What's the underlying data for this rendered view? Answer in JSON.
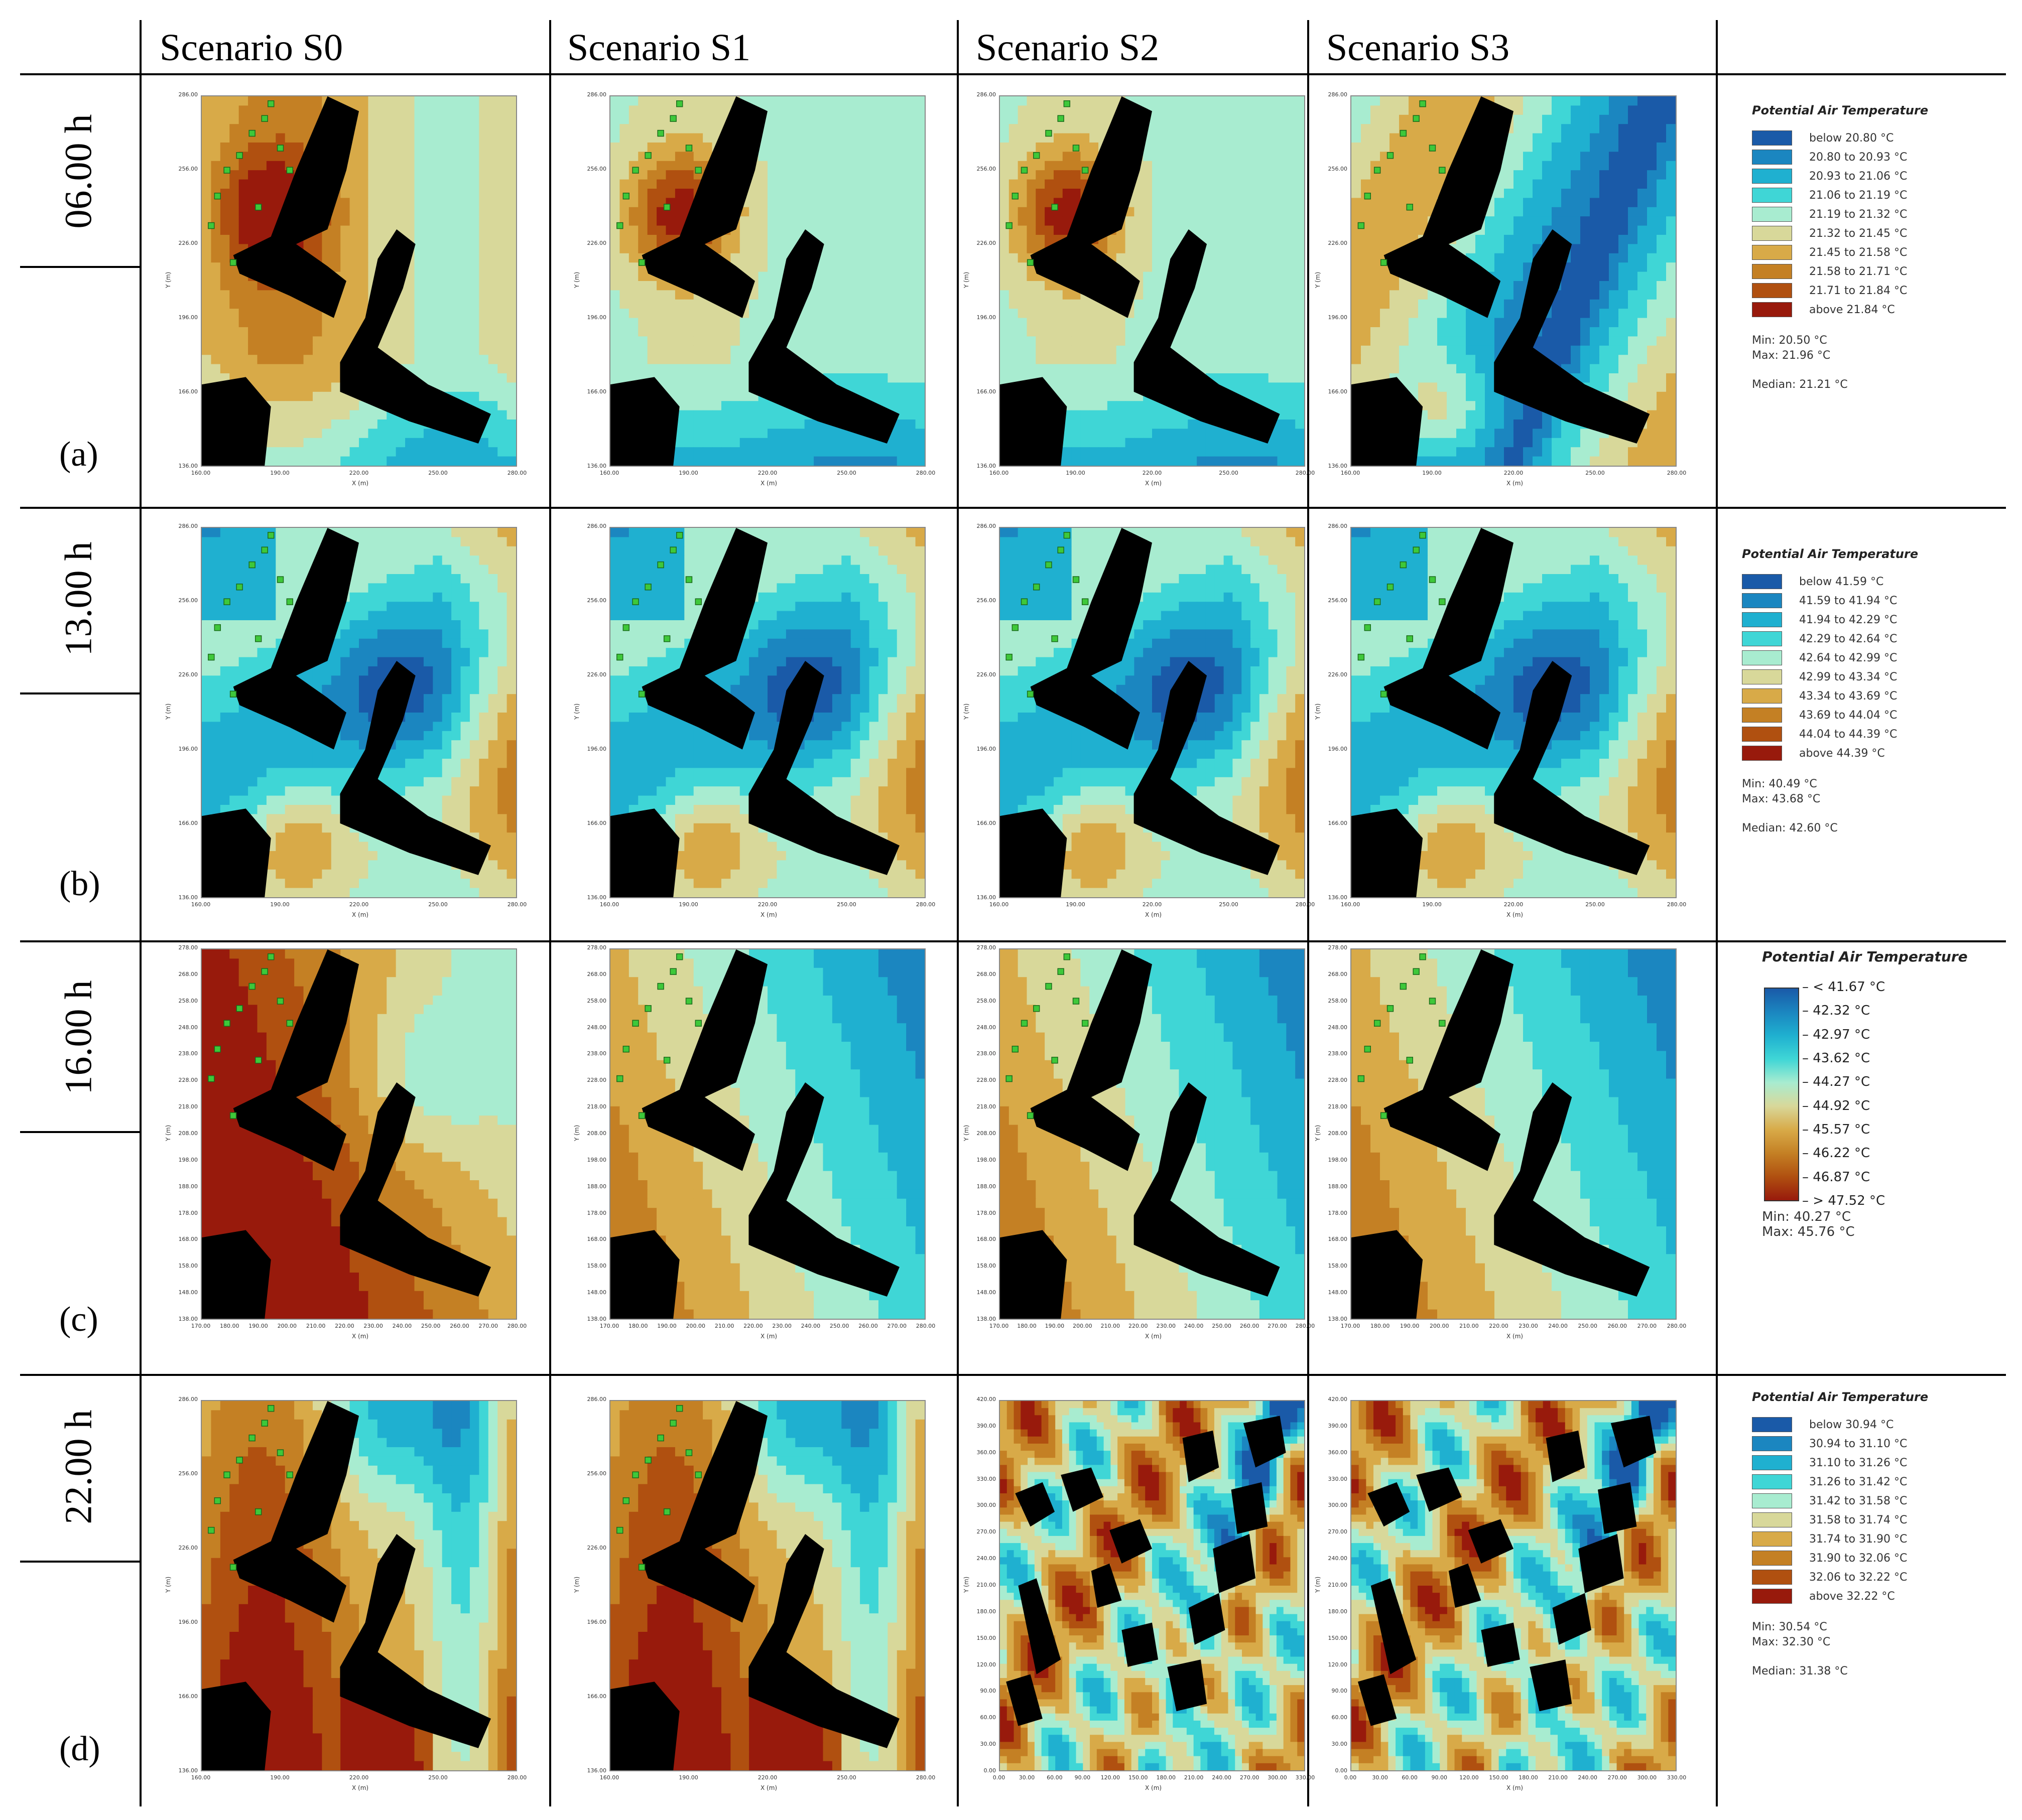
{
  "headers": [
    "Scenario S0",
    "Scenario S1",
    "Scenario S2",
    "Scenario S3"
  ],
  "rows": [
    {
      "time": "06.00 h",
      "letter": "(a)"
    },
    {
      "time": "13.00 h",
      "letter": "(b)"
    },
    {
      "time": "16.00 h",
      "letter": "(c)"
    },
    {
      "time": "22.00 h",
      "letter": "(d)"
    }
  ],
  "axis": {
    "x_label": "X (m)",
    "y_label": "Y (m)",
    "rows_abd": {
      "x_ticks": [
        "160.00",
        "190.00",
        "220.00",
        "250.00",
        "280.00"
      ],
      "y_ticks": [
        "286.00",
        "256.00",
        "226.00",
        "196.00",
        "166.00",
        "136.00"
      ]
    },
    "row_c": {
      "x_ticks": [
        "170.00",
        "180.00",
        "190.00",
        "200.00",
        "210.00",
        "220.00",
        "230.00",
        "240.00",
        "250.00",
        "260.00",
        "270.00",
        "280.00"
      ],
      "y_ticks": [
        "278.00",
        "268.00",
        "258.00",
        "248.00",
        "238.00",
        "228.00",
        "218.00",
        "208.00",
        "198.00",
        "188.00",
        "178.00",
        "168.00",
        "158.00",
        "148.00",
        "138.00"
      ]
    },
    "row_d_wide": {
      "x_ticks": [
        "0.00",
        "30.00",
        "60.00",
        "90.00",
        "120.00",
        "150.00",
        "180.00",
        "210.00",
        "240.00",
        "270.00",
        "300.00",
        "330.00"
      ],
      "y_ticks": [
        "420.00",
        "390.00",
        "360.00",
        "330.00",
        "300.00",
        "270.00",
        "240.00",
        "210.00",
        "180.00",
        "150.00",
        "120.00",
        "90.00",
        "60.00",
        "30.00",
        "0.00"
      ]
    }
  },
  "legends": [
    {
      "title": "Potential Air Temperature",
      "entries": [
        "below 20.80 °C",
        "20.80 to 20.93 °C",
        "20.93 to 21.06 °C",
        "21.06 to 21.19 °C",
        "21.19 to 21.32 °C",
        "21.32 to 21.45 °C",
        "21.45 to 21.58 °C",
        "21.58 to 21.71 °C",
        "21.71 to 21.84 °C",
        "above 21.84 °C"
      ],
      "min": "Min: 20.50 °C",
      "max": "Max: 21.96 °C",
      "median": "Median: 21.21 °C"
    },
    {
      "title": "Potential Air Temperature",
      "entries": [
        "below 41.59 °C",
        "41.59 to 41.94 °C",
        "41.94 to 42.29 °C",
        "42.29 to 42.64 °C",
        "42.64 to 42.99 °C",
        "42.99 to 43.34 °C",
        "43.34 to 43.69 °C",
        "43.69 to 44.04 °C",
        "44.04 to 44.39 °C",
        "above 44.39 °C"
      ],
      "min": "Min: 40.49 °C",
      "max": "Max: 43.68 °C",
      "median": "Median: 42.60 °C"
    },
    {
      "title": "Potential Air Temperature",
      "scale": [
        "< 41.67 °C",
        "42.32 °C",
        "42.97 °C",
        "43.62 °C",
        "44.27 °C",
        "44.92 °C",
        "45.57 °C",
        "46.22 °C",
        "46.87 °C",
        "> 47.52 °C"
      ],
      "min": "Min: 40.27 °C",
      "max": "Max: 45.76 °C"
    },
    {
      "title": "Potential Air Temperature",
      "entries": [
        "below 30.94 °C",
        "30.94 to 31.10 °C",
        "31.10 to 31.26 °C",
        "31.26 to 31.42 °C",
        "31.42 to 31.58 °C",
        "31.58 to 31.74 °C",
        "31.74 to 31.90 °C",
        "31.90 to 32.06 °C",
        "32.06 to 32.22 °C",
        "above 32.22 °C"
      ],
      "min": "Min: 30.54 °C",
      "max": "Max: 32.30 °C",
      "median": "Median: 31.38 °C"
    }
  ],
  "palette": [
    "#1a5aa8",
    "#1b86c0",
    "#1fb0d0",
    "#3fd6d6",
    "#a8ecd0",
    "#d8d89a",
    "#d8aa48",
    "#c48024",
    "#b05010",
    "#981a0c"
  ],
  "building_color": "#000000",
  "tree_color": "#3ec83a"
}
